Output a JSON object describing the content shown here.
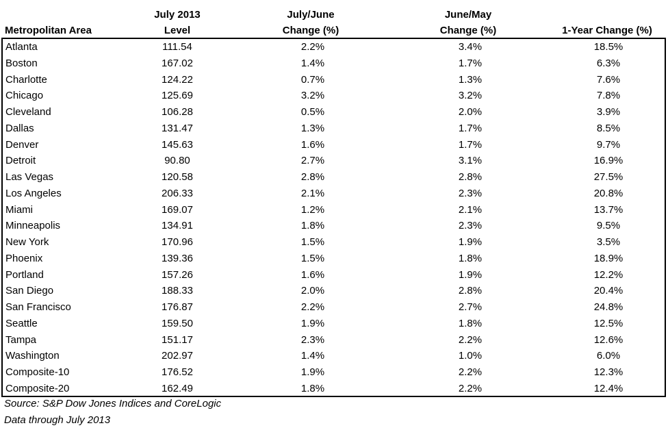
{
  "header": {
    "col0": "Metropolitan Area",
    "col1_line1": "July 2013",
    "col1_line2": "Level",
    "col2_line1": "July/June",
    "col2_line2": "Change (%)",
    "col3_line1": "June/May",
    "col3_line2": "Change (%)",
    "col4": "1-Year Change (%)"
  },
  "rows": [
    {
      "area": "Atlanta",
      "level": "111.54",
      "jul_jun": "2.2%",
      "jun_may": "3.4%",
      "one_year": "18.5%"
    },
    {
      "area": "Boston",
      "level": "167.02",
      "jul_jun": "1.4%",
      "jun_may": "1.7%",
      "one_year": "6.3%"
    },
    {
      "area": "Charlotte",
      "level": "124.22",
      "jul_jun": "0.7%",
      "jun_may": "1.3%",
      "one_year": "7.6%"
    },
    {
      "area": "Chicago",
      "level": "125.69",
      "jul_jun": "3.2%",
      "jun_may": "3.2%",
      "one_year": "7.8%"
    },
    {
      "area": "Cleveland",
      "level": "106.28",
      "jul_jun": "0.5%",
      "jun_may": "2.0%",
      "one_year": "3.9%"
    },
    {
      "area": "Dallas",
      "level": "131.47",
      "jul_jun": "1.3%",
      "jun_may": "1.7%",
      "one_year": "8.5%"
    },
    {
      "area": "Denver",
      "level": "145.63",
      "jul_jun": "1.6%",
      "jun_may": "1.7%",
      "one_year": "9.7%"
    },
    {
      "area": "Detroit",
      "level": "90.80",
      "jul_jun": "2.7%",
      "jun_may": "3.1%",
      "one_year": "16.9%"
    },
    {
      "area": "Las Vegas",
      "level": "120.58",
      "jul_jun": "2.8%",
      "jun_may": "2.8%",
      "one_year": "27.5%"
    },
    {
      "area": "Los Angeles",
      "level": "206.33",
      "jul_jun": "2.1%",
      "jun_may": "2.3%",
      "one_year": "20.8%"
    },
    {
      "area": "Miami",
      "level": "169.07",
      "jul_jun": "1.2%",
      "jun_may": "2.1%",
      "one_year": "13.7%"
    },
    {
      "area": "Minneapolis",
      "level": "134.91",
      "jul_jun": "1.8%",
      "jun_may": "2.3%",
      "one_year": "9.5%"
    },
    {
      "area": "New York",
      "level": "170.96",
      "jul_jun": "1.5%",
      "jun_may": "1.9%",
      "one_year": "3.5%"
    },
    {
      "area": "Phoenix",
      "level": "139.36",
      "jul_jun": "1.5%",
      "jun_may": "1.8%",
      "one_year": "18.9%"
    },
    {
      "area": "Portland",
      "level": "157.26",
      "jul_jun": "1.6%",
      "jun_may": "1.9%",
      "one_year": "12.2%"
    },
    {
      "area": "San Diego",
      "level": "188.33",
      "jul_jun": "2.0%",
      "jun_may": "2.8%",
      "one_year": "20.4%"
    },
    {
      "area": "San Francisco",
      "level": "176.87",
      "jul_jun": "2.2%",
      "jun_may": "2.7%",
      "one_year": "24.8%"
    },
    {
      "area": "Seattle",
      "level": "159.50",
      "jul_jun": "1.9%",
      "jun_may": "1.8%",
      "one_year": "12.5%"
    },
    {
      "area": "Tampa",
      "level": "151.17",
      "jul_jun": "2.3%",
      "jun_may": "2.2%",
      "one_year": "12.6%"
    },
    {
      "area": "Washington",
      "level": "202.97",
      "jul_jun": "1.4%",
      "jun_may": "1.0%",
      "one_year": "6.0%"
    },
    {
      "area": "Composite-10",
      "level": "176.52",
      "jul_jun": "1.9%",
      "jun_may": "2.2%",
      "one_year": "12.3%"
    },
    {
      "area": "Composite-20",
      "level": "162.49",
      "jul_jun": "1.8%",
      "jun_may": "2.2%",
      "one_year": "12.4%"
    }
  ],
  "notes": {
    "source": "Source: S&P Dow Jones Indices and CoreLogic",
    "data_through": "Data through July 2013"
  }
}
